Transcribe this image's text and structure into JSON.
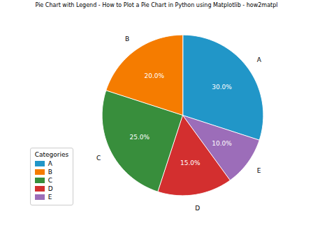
{
  "chart_data": {
    "type": "pie",
    "title": "Pie Chart with Legend - How to Plot a Pie Chart in Python using Matplotlib - how2matpl",
    "categories": [
      "A",
      "E",
      "D",
      "C",
      "B"
    ],
    "values": [
      30,
      10,
      15,
      25,
      20
    ],
    "value_labels": [
      "30.0%",
      "10.0%",
      "15.0%",
      "25.0%",
      "20.0%"
    ],
    "colors": [
      "#2196c8",
      "#9c6db9",
      "#d32f2f",
      "#388e3c",
      "#f57c00"
    ],
    "data_labels": true,
    "legend": "lower left",
    "legend_title": "Categories",
    "legend_items": [
      {
        "name": "A",
        "color": "#2196c8"
      },
      {
        "name": "B",
        "color": "#f57c00"
      },
      {
        "name": "C",
        "color": "#388e3c"
      },
      {
        "name": "D",
        "color": "#d32f2f"
      },
      {
        "name": "E",
        "color": "#9c6db9"
      }
    ]
  }
}
